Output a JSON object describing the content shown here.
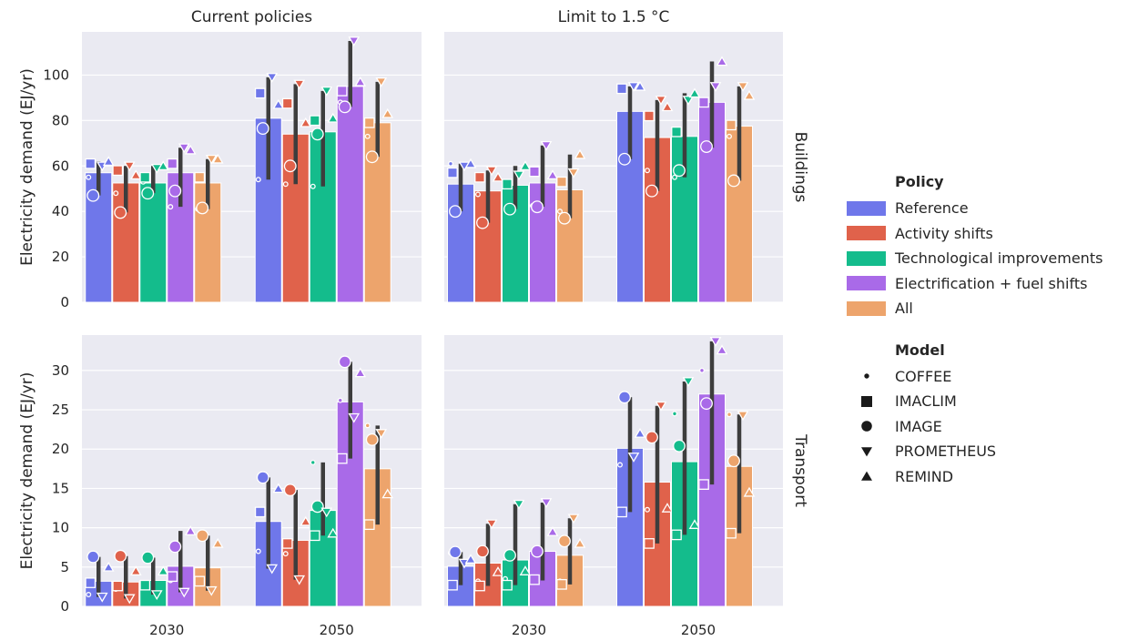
{
  "chart_data": {
    "type": "bar",
    "ylabel": "Electricity demand (EJ/yr)",
    "columns": [
      "Current policies",
      "Limit to 1.5 °C"
    ],
    "rows": [
      "Buildings",
      "Transport"
    ],
    "categories": [
      "2030",
      "2050"
    ],
    "policies": [
      "Reference",
      "Activity shifts",
      "Technological improvements",
      "Electrification + fuel shifts",
      "All"
    ],
    "policy_colors": [
      "#6f77ea",
      "#e0624b",
      "#14bc8c",
      "#a96ae8",
      "#eda46c"
    ],
    "models": [
      "COFFEE",
      "IMACLIM",
      "IMAGE",
      "PROMETHEUS",
      "REMIND"
    ],
    "ylim": {
      "Buildings": [
        0,
        119
      ],
      "Transport": [
        0,
        34.5
      ]
    },
    "yticks": {
      "Buildings": [
        0,
        20,
        40,
        60,
        80,
        100
      ],
      "Transport": [
        0,
        5,
        10,
        15,
        20,
        25,
        30
      ]
    },
    "panels": [
      {
        "row": "Buildings",
        "col": "Current policies",
        "groups": [
          [
            {
              "mean": 57,
              "lo": 47,
              "hi": 62,
              "points": {
                "COFFEE": 55,
                "IMACLIM": 61,
                "IMAGE": 47,
                "PROMETHEUS": 60,
                "REMIND": 62
              }
            },
            {
              "mean": 52.5,
              "lo": 39.5,
              "hi": 60,
              "points": {
                "COFFEE": 48,
                "IMACLIM": 58,
                "IMAGE": 39.5,
                "PROMETHEUS": 60,
                "REMIND": 56
              }
            },
            {
              "mean": 52.5,
              "lo": 48,
              "hi": 60,
              "points": {
                "COFFEE": 53,
                "IMACLIM": 55,
                "IMAGE": 48,
                "PROMETHEUS": 59,
                "REMIND": 60
              }
            },
            {
              "mean": 57,
              "lo": 42,
              "hi": 68,
              "points": {
                "COFFEE": 42,
                "IMACLIM": 61,
                "IMAGE": 49,
                "PROMETHEUS": 68,
                "REMIND": 67
              }
            },
            {
              "mean": 52.5,
              "lo": 41,
              "hi": 63,
              "points": {
                "COFFEE": 41,
                "IMACLIM": 55,
                "IMAGE": 41.5,
                "PROMETHEUS": 63,
                "REMIND": 63
              }
            }
          ],
          [
            {
              "mean": 81,
              "lo": 54,
              "hi": 99,
              "points": {
                "COFFEE": 54,
                "IMACLIM": 92,
                "IMAGE": 76.5,
                "PROMETHEUS": 99,
                "REMIND": 87
              }
            },
            {
              "mean": 74,
              "lo": 52,
              "hi": 96,
              "points": {
                "COFFEE": 52,
                "IMACLIM": 87.5,
                "IMAGE": 60,
                "PROMETHEUS": 96,
                "REMIND": 79
              }
            },
            {
              "mean": 75,
              "lo": 51,
              "hi": 93,
              "points": {
                "COFFEE": 51,
                "IMACLIM": 80,
                "IMAGE": 74,
                "PROMETHEUS": 93,
                "REMIND": 81
              }
            },
            {
              "mean": 95,
              "lo": 86,
              "hi": 115,
              "points": {
                "COFFEE": 88,
                "IMACLIM": 93,
                "IMAGE": 86,
                "PROMETHEUS": 115,
                "REMIND": 97
              }
            },
            {
              "mean": 79,
              "lo": 64,
              "hi": 97,
              "points": {
                "COFFEE": 73,
                "IMACLIM": 79,
                "IMAGE": 64,
                "PROMETHEUS": 97,
                "REMIND": 83
              }
            }
          ]
        ]
      },
      {
        "row": "Buildings",
        "col": "Limit to 1.5 °C",
        "groups": [
          [
            {
              "mean": 52,
              "lo": 40,
              "hi": 61,
              "points": {
                "COFFEE": 61,
                "IMACLIM": 57,
                "IMAGE": 40,
                "PROMETHEUS": 60,
                "REMIND": 61
              }
            },
            {
              "mean": 49,
              "lo": 35,
              "hi": 58,
              "points": {
                "COFFEE": 47.5,
                "IMACLIM": 55,
                "IMAGE": 35,
                "PROMETHEUS": 58,
                "REMIND": 55
              }
            },
            {
              "mean": 51.5,
              "lo": 41,
              "hi": 60,
              "points": {
                "COFFEE": 52,
                "IMACLIM": 52,
                "IMAGE": 41,
                "PROMETHEUS": 56,
                "REMIND": 60
              }
            },
            {
              "mean": 52.5,
              "lo": 42,
              "hi": 69,
              "points": {
                "COFFEE": 42.5,
                "IMACLIM": 57.5,
                "IMAGE": 42,
                "PROMETHEUS": 69,
                "REMIND": 56
              }
            },
            {
              "mean": 49.5,
              "lo": 37,
              "hi": 65,
              "points": {
                "COFFEE": 40,
                "IMACLIM": 53,
                "IMAGE": 37,
                "PROMETHEUS": 57,
                "REMIND": 65
              }
            }
          ],
          [
            {
              "mean": 84,
              "lo": 63,
              "hi": 95,
              "points": {
                "COFFEE": 94,
                "IMACLIM": 94,
                "IMAGE": 63,
                "PROMETHEUS": 95,
                "REMIND": 95
              }
            },
            {
              "mean": 72.5,
              "lo": 49,
              "hi": 89,
              "points": {
                "COFFEE": 58,
                "IMACLIM": 82,
                "IMAGE": 49,
                "PROMETHEUS": 89,
                "REMIND": 86
              }
            },
            {
              "mean": 73,
              "lo": 55,
              "hi": 92,
              "points": {
                "COFFEE": 55,
                "IMACLIM": 75,
                "IMAGE": 58,
                "PROMETHEUS": 89,
                "REMIND": 92
              }
            },
            {
              "mean": 88,
              "lo": 68,
              "hi": 106,
              "points": {
                "COFFEE": 88,
                "IMACLIM": 88,
                "IMAGE": 68.5,
                "PROMETHEUS": 95,
                "REMIND": 106
              }
            },
            {
              "mean": 77.5,
              "lo": 53.5,
              "hi": 95,
              "points": {
                "COFFEE": 73,
                "IMACLIM": 78,
                "IMAGE": 53.5,
                "PROMETHEUS": 95,
                "REMIND": 91
              }
            }
          ]
        ]
      },
      {
        "row": "Transport",
        "col": "Current policies",
        "groups": [
          [
            {
              "mean": 3.2,
              "lo": 1.2,
              "hi": 6.3,
              "points": {
                "COFFEE": 1.5,
                "IMACLIM": 3,
                "IMAGE": 6.3,
                "PROMETHEUS": 1.2,
                "REMIND": 5
              }
            },
            {
              "mean": 3.1,
              "lo": 1,
              "hi": 6.4,
              "points": {
                "COFFEE": 2.2,
                "IMACLIM": 2.6,
                "IMAGE": 6.4,
                "PROMETHEUS": 1,
                "REMIND": 4.5
              }
            },
            {
              "mean": 3.3,
              "lo": 1.5,
              "hi": 6.2,
              "points": {
                "COFFEE": 2.4,
                "IMACLIM": 2.7,
                "IMAGE": 6.2,
                "PROMETHEUS": 1.5,
                "REMIND": 4.5
              }
            },
            {
              "mean": 5.1,
              "lo": 1.8,
              "hi": 9.6,
              "points": {
                "COFFEE": 3.3,
                "IMACLIM": 3.8,
                "IMAGE": 7.6,
                "PROMETHEUS": 1.8,
                "REMIND": 9.6
              }
            },
            {
              "mean": 4.9,
              "lo": 2,
              "hi": 9,
              "points": {
                "COFFEE": 3.1,
                "IMACLIM": 3.2,
                "IMAGE": 9,
                "PROMETHEUS": 2,
                "REMIND": 8
              }
            }
          ],
          [
            {
              "mean": 10.8,
              "lo": 4.8,
              "hi": 16.4,
              "points": {
                "COFFEE": 7,
                "IMACLIM": 12,
                "IMAGE": 16.4,
                "PROMETHEUS": 4.8,
                "REMIND": 15
              }
            },
            {
              "mean": 8.4,
              "lo": 3.4,
              "hi": 14.8,
              "points": {
                "COFFEE": 6.7,
                "IMACLIM": 8,
                "IMAGE": 14.8,
                "PROMETHEUS": 3.4,
                "REMIND": 10.8
              }
            },
            {
              "mean": 12.2,
              "lo": 9,
              "hi": 18.3,
              "points": {
                "COFFEE": 18.3,
                "IMACLIM": 9,
                "IMAGE": 12.7,
                "PROMETHEUS": 12,
                "REMIND": 9.3
              }
            },
            {
              "mean": 26,
              "lo": 18.8,
              "hi": 31.1,
              "points": {
                "COFFEE": 26.2,
                "IMACLIM": 18.8,
                "IMAGE": 31.1,
                "PROMETHEUS": 24,
                "REMIND": 29.7
              }
            },
            {
              "mean": 17.5,
              "lo": 10.4,
              "hi": 23,
              "points": {
                "COFFEE": 23,
                "IMACLIM": 10.4,
                "IMAGE": 21.2,
                "PROMETHEUS": 22,
                "REMIND": 14.3
              }
            }
          ]
        ]
      },
      {
        "row": "Transport",
        "col": "Limit to 1.5 °C",
        "groups": [
          [
            {
              "mean": 5.1,
              "lo": 2.7,
              "hi": 6.9,
              "points": {
                "COFFEE": 6.8,
                "IMACLIM": 2.7,
                "IMAGE": 6.9,
                "PROMETHEUS": 5.5,
                "REMIND": 6
              }
            },
            {
              "mean": 5.5,
              "lo": 2.6,
              "hi": 10.5,
              "points": {
                "COFFEE": 3.2,
                "IMACLIM": 2.6,
                "IMAGE": 7,
                "PROMETHEUS": 10.5,
                "REMIND": 4.4
              }
            },
            {
              "mean": 5.9,
              "lo": 2.7,
              "hi": 13,
              "points": {
                "COFFEE": 3.5,
                "IMACLIM": 2.7,
                "IMAGE": 6.5,
                "PROMETHEUS": 13,
                "REMIND": 4.5
              }
            },
            {
              "mean": 7,
              "lo": 3.3,
              "hi": 13.2,
              "points": {
                "COFFEE": 3.3,
                "IMACLIM": 3.4,
                "IMAGE": 7,
                "PROMETHEUS": 13.2,
                "REMIND": 9.5
              }
            },
            {
              "mean": 6.5,
              "lo": 2.8,
              "hi": 11.2,
              "points": {
                "COFFEE": 3.2,
                "IMACLIM": 2.8,
                "IMAGE": 8.3,
                "PROMETHEUS": 11.2,
                "REMIND": 8
              }
            }
          ],
          [
            {
              "mean": 20.1,
              "lo": 12,
              "hi": 26.6,
              "points": {
                "COFFEE": 18,
                "IMACLIM": 12,
                "IMAGE": 26.6,
                "PROMETHEUS": 19,
                "REMIND": 22
              }
            },
            {
              "mean": 15.8,
              "lo": 8,
              "hi": 25.5,
              "points": {
                "COFFEE": 12.3,
                "IMACLIM": 8,
                "IMAGE": 21.5,
                "PROMETHEUS": 25.5,
                "REMIND": 12.5
              }
            },
            {
              "mean": 18.4,
              "lo": 9.1,
              "hi": 28.6,
              "points": {
                "COFFEE": 24.5,
                "IMACLIM": 9.1,
                "IMAGE": 20.4,
                "PROMETHEUS": 28.6,
                "REMIND": 10.4
              }
            },
            {
              "mean": 27,
              "lo": 15.5,
              "hi": 33.7,
              "points": {
                "COFFEE": 30,
                "IMACLIM": 15.5,
                "IMAGE": 25.8,
                "PROMETHEUS": 33.7,
                "REMIND": 32.6
              }
            },
            {
              "mean": 17.8,
              "lo": 9.3,
              "hi": 24.4,
              "points": {
                "COFFEE": 24.4,
                "IMACLIM": 9.3,
                "IMAGE": 18.5,
                "PROMETHEUS": 24.3,
                "REMIND": 14.5
              }
            }
          ]
        ]
      }
    ],
    "legend": {
      "policy_title": "Policy",
      "model_title": "Model"
    }
  }
}
